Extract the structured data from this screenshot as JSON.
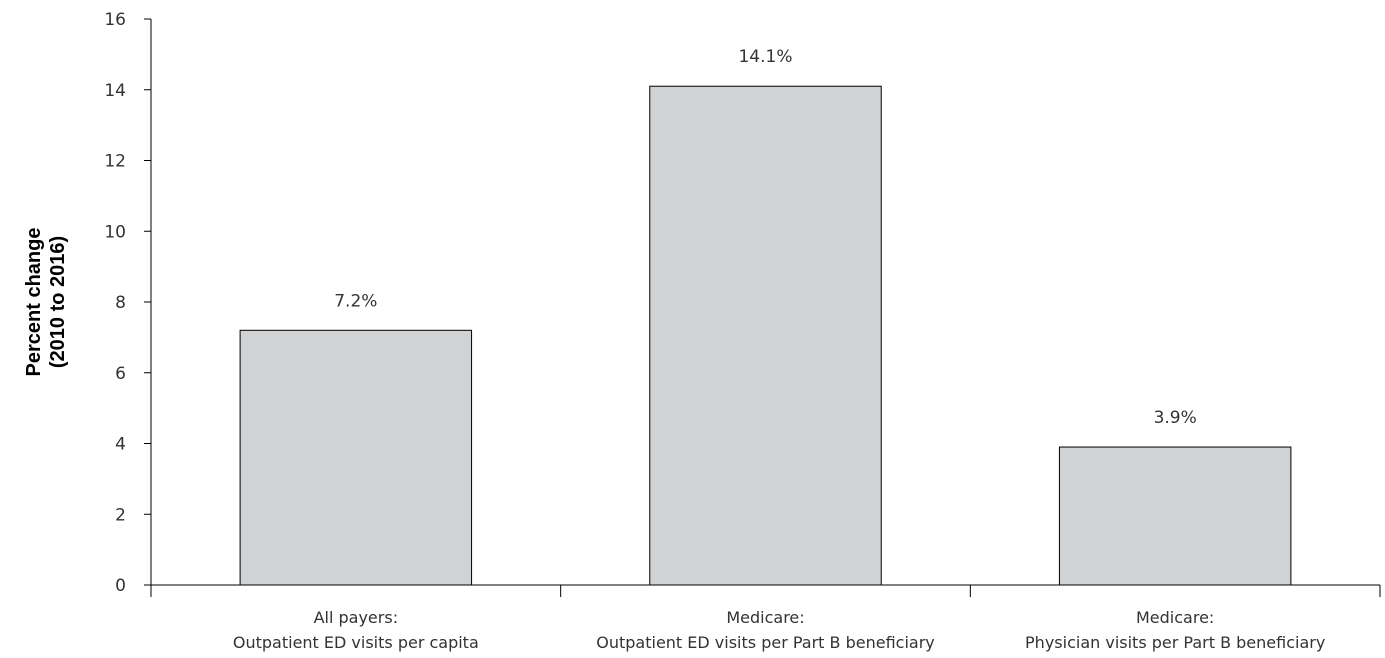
{
  "chart_data": {
    "type": "bar",
    "ylabel_lines": [
      "Percent change",
      "(2010 to 2016)"
    ],
    "ylim": [
      0,
      16
    ],
    "yticks": [
      0,
      2,
      4,
      6,
      8,
      10,
      12,
      14,
      16
    ],
    "grid": false,
    "categories": [
      [
        "All payers:",
        "Outpatient ED visits per capita"
      ],
      [
        "Medicare:",
        "Outpatient ED visits per Part B beneficiary"
      ],
      [
        "Medicare:",
        "Physician visits per Part B beneficiary"
      ]
    ],
    "values": [
      7.2,
      14.1,
      3.9
    ],
    "data_labels": [
      "7.2%",
      "14.1%",
      "3.9%"
    ],
    "colors": {
      "bar_fill": "#d1d2d4",
      "bar_stroke": "#000000",
      "axis": "#000000"
    }
  }
}
